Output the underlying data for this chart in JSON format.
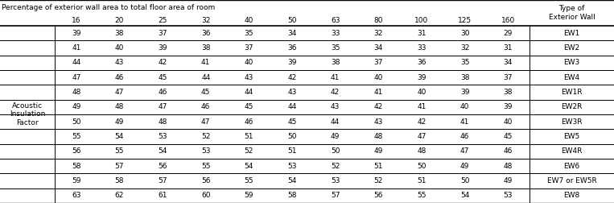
{
  "title_left": "Percentage of exterior wall area to total floor area of room",
  "title_right": "Type of\nExterior Wall",
  "col_headers": [
    "16",
    "20",
    "25",
    "32",
    "40",
    "50",
    "63",
    "80",
    "100",
    "125",
    "160"
  ],
  "row_label_group": "Acoustic\nInsulation\nFactor",
  "rows": [
    {
      "values": [
        39,
        38,
        37,
        36,
        35,
        34,
        33,
        32,
        31,
        30,
        29
      ],
      "label": "EW1"
    },
    {
      "values": [
        41,
        40,
        39,
        38,
        37,
        36,
        35,
        34,
        33,
        32,
        31
      ],
      "label": "EW2"
    },
    {
      "values": [
        44,
        43,
        42,
        41,
        40,
        39,
        38,
        37,
        36,
        35,
        34
      ],
      "label": "EW3"
    },
    {
      "values": [
        47,
        46,
        45,
        44,
        43,
        42,
        41,
        40,
        39,
        38,
        37
      ],
      "label": "EW4"
    },
    {
      "values": [
        48,
        47,
        46,
        45,
        44,
        43,
        42,
        41,
        40,
        39,
        38
      ],
      "label": "EW1R"
    },
    {
      "values": [
        49,
        48,
        47,
        46,
        45,
        44,
        43,
        42,
        41,
        40,
        39
      ],
      "label": "EW2R"
    },
    {
      "values": [
        50,
        49,
        48,
        47,
        46,
        45,
        44,
        43,
        42,
        41,
        40
      ],
      "label": "EW3R"
    },
    {
      "values": [
        55,
        54,
        53,
        52,
        51,
        50,
        49,
        48,
        47,
        46,
        45
      ],
      "label": "EW5"
    },
    {
      "values": [
        56,
        55,
        54,
        53,
        52,
        51,
        50,
        49,
        48,
        47,
        46
      ],
      "label": "EW4R"
    },
    {
      "values": [
        58,
        57,
        56,
        55,
        54,
        53,
        52,
        51,
        50,
        49,
        48
      ],
      "label": "EW6"
    },
    {
      "values": [
        59,
        58,
        57,
        56,
        55,
        54,
        53,
        52,
        51,
        50,
        49
      ],
      "label": "EW7 or EW5R"
    },
    {
      "values": [
        63,
        62,
        61,
        60,
        59,
        58,
        57,
        56,
        55,
        54,
        53
      ],
      "label": "EW8"
    }
  ],
  "bg_color": "#ffffff",
  "line_color": "#000000",
  "text_color": "#000000",
  "font_size": 6.5
}
